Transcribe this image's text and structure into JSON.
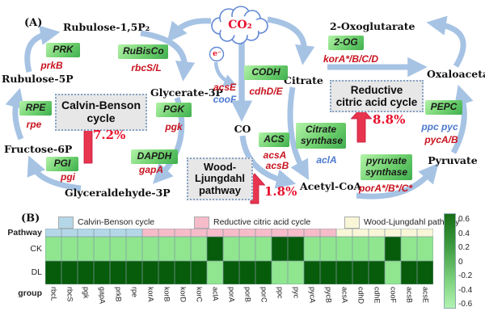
{
  "colors": {
    "heat_dark": "#065c0a",
    "heat_light": "#8fe68f",
    "group_blue": "#b4d8e8",
    "group_pink": "#f7bcc9",
    "group_cream": "#f9f6d8",
    "gene_red": "#c81420",
    "gene_blue": "#4d79cf",
    "arrow_blue": "#a6c3e4",
    "block_arrow": "#e8354f",
    "percent_red": "#e8112d",
    "cloud_blue": "#6188d4"
  },
  "panel_a": {
    "label": "(A)",
    "cloud_text": "CO₂",
    "electron_text": "e⁻",
    "metabolites": {
      "rubulose15p2": "Rubulose-1,5P₂",
      "rubulose5p": "Rubulose-5P",
      "glycerate3p": "Glycerate-3P",
      "fructose6p": "Fructose-6P",
      "ga3p": "Glyceraldehyde-3P",
      "co": "CO",
      "citrate": "Citrate",
      "acetylcoa": "Acetyl-CoA",
      "oxoglutarate": "2-Oxoglutarate",
      "oxaloacetate": "Oxaloacetate",
      "pyruvate": "Pyruvate"
    },
    "enzymes": {
      "prk": "PRK",
      "rubisco": "RuBisCo",
      "rpe": "RPE",
      "pgk": "PGK",
      "pgi": "PGI",
      "dapdh": "DAPDH",
      "codh": "CODH",
      "acs": "ACS",
      "og2": "2-OG",
      "citrate_synthase_1": "Citrate",
      "citrate_synthase_2": "synthase",
      "pepc": "PEPC",
      "pyruvate_synthase_1": "pyruvate",
      "pyruvate_synthase_2": "synthase"
    },
    "genes": {
      "prkB": "prkB",
      "rbcSL": "rbcS/L",
      "rpe": "rpe",
      "pgk": "pgk",
      "pgi": "pgi",
      "gapA": "gapA",
      "acsE": "acsE",
      "cooF": "cooF",
      "cdhDE": "cdhD/E",
      "acsA": "acsA",
      "acsB": "acsB",
      "korABCD": "korA*/B/C/D",
      "aclA": "aclA",
      "ppc_pyc": "ppc pyc",
      "pycAB": "pycA/B",
      "porABC": "porA*/B*/C*"
    },
    "pathways": {
      "calvin": {
        "line1": "Calvin-Benson",
        "line2": "cycle",
        "percent": "7.2%"
      },
      "wood": {
        "line1": "Wood-",
        "line2": "Ljungdahl",
        "line3": "pathway",
        "percent": "1.8%"
      },
      "rtca": {
        "line1": "Reductive",
        "line2": "citric acid cycle",
        "percent": "8.8%"
      }
    }
  },
  "panel_b": {
    "label": "(B)",
    "row_labels": {
      "pathway": "Pathway",
      "ck": "CK",
      "dl": "DL",
      "group": "group"
    }
  },
  "chart_data": {
    "type": "heatmap",
    "rows": [
      "CK",
      "DL"
    ],
    "columns": [
      "rbcL",
      "rbcS",
      "pgk",
      "gapA",
      "prkB",
      "rpe",
      "korA",
      "korB",
      "korD",
      "korC",
      "aclA",
      "porA",
      "porB",
      "porC",
      "ppc",
      "pyc",
      "pycA",
      "pycB",
      "acsA",
      "cdhD",
      "cdhE",
      "cooF",
      "acsB",
      "acsE"
    ],
    "column_groups": [
      {
        "name": "Calvin-Benson cycle",
        "color": "#b4d8e8",
        "columns": [
          "rbcL",
          "rbcS",
          "pgk",
          "gapA",
          "prkB",
          "rpe"
        ]
      },
      {
        "name": "Reductive citric acid cycle",
        "color": "#f7bcc9",
        "columns": [
          "korA",
          "korB",
          "korD",
          "korC",
          "aclA",
          "porA",
          "porB",
          "porC",
          "ppc",
          "pyc",
          "pycA",
          "pycB"
        ]
      },
      {
        "name": "Wood-Ljungdahl pathway",
        "color": "#f9f6d8",
        "columns": [
          "acsA",
          "cdhD",
          "cdhE",
          "cooF",
          "acsB",
          "acsE"
        ]
      }
    ],
    "values": {
      "CK": [
        -0.5,
        -0.5,
        -0.5,
        -0.5,
        -0.5,
        -0.5,
        -0.5,
        -0.5,
        -0.5,
        -0.5,
        0.65,
        -0.5,
        -0.5,
        -0.5,
        0.65,
        0.65,
        -0.5,
        -0.5,
        -0.5,
        -0.5,
        -0.5,
        0.65,
        -0.5,
        -0.5
      ],
      "DL": [
        0.65,
        0.65,
        0.65,
        0.65,
        0.65,
        0.65,
        0.65,
        0.65,
        0.65,
        0.65,
        -0.5,
        0.65,
        0.65,
        0.65,
        -0.5,
        -0.5,
        0.65,
        0.65,
        0.65,
        0.65,
        0.65,
        -0.5,
        0.65,
        0.65
      ]
    },
    "colorbar": {
      "ticks": [
        "0.6",
        "0.4",
        "0.2",
        "0",
        "-0.2",
        "-0.4",
        "-0.6"
      ],
      "range": [
        -0.7,
        0.7
      ]
    },
    "legend_position": "top",
    "grid": true
  }
}
